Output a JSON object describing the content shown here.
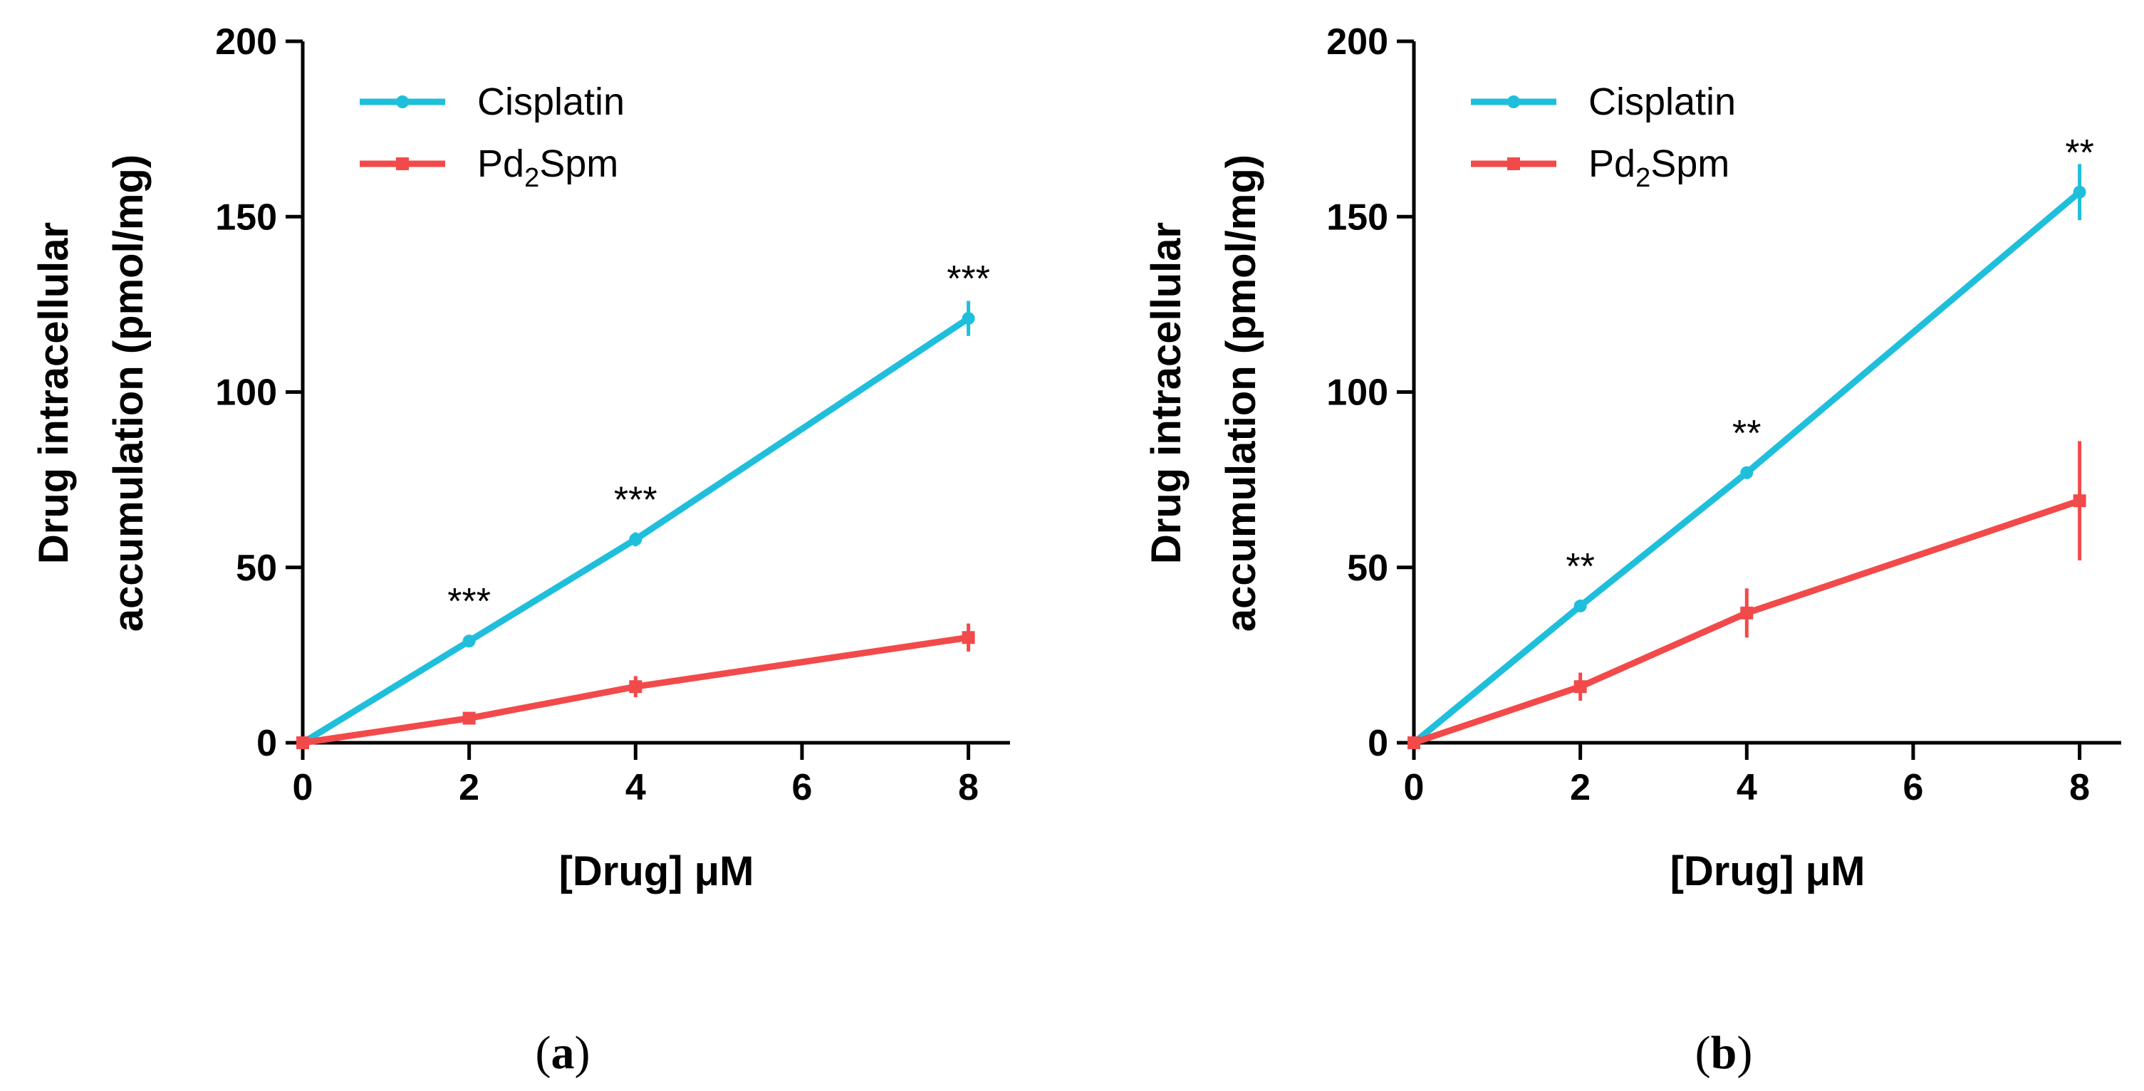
{
  "chart_data": [
    {
      "type": "line",
      "panel_label": "a",
      "xlabel": "[Drug] μM",
      "ylabel_line1": "Drug intracellular",
      "ylabel_line2": "accumulation (pmol/mg)",
      "x_ticks": [
        "0",
        "2",
        "4",
        "6",
        "8"
      ],
      "y_ticks": [
        "0",
        "50",
        "100",
        "150",
        "200"
      ],
      "xlim": [
        0,
        8.5
      ],
      "ylim": [
        0,
        200
      ],
      "legend": {
        "placement": "top-left"
      },
      "series": [
        {
          "name": "Cisplatin",
          "legend_text": "Cisplatin",
          "color": "#1fbfdc",
          "marker": "circle",
          "x": [
            0,
            2,
            4,
            8
          ],
          "y": [
            0,
            29,
            58,
            121
          ],
          "err": [
            0,
            1.5,
            2,
            5
          ]
        },
        {
          "name": "Pd2Spm",
          "legend_main": "Pd",
          "legend_sub": "2",
          "legend_rest": "Spm",
          "color": "#f24a4a",
          "marker": "square",
          "x": [
            0,
            2,
            4,
            8
          ],
          "y": [
            0,
            7,
            16,
            30
          ],
          "err": [
            0,
            1.5,
            3,
            4
          ]
        }
      ],
      "annotations": [
        {
          "x": 2,
          "y": 29,
          "text": "***"
        },
        {
          "x": 4,
          "y": 58,
          "text": "***"
        },
        {
          "x": 8,
          "y": 121,
          "text": "***"
        }
      ]
    },
    {
      "type": "line",
      "panel_label": "b",
      "xlabel": "[Drug] μM",
      "ylabel_line1": "Drug intracellular",
      "ylabel_line2": "accumulation (pmol/mg)",
      "x_ticks": [
        "0",
        "2",
        "4",
        "6",
        "8"
      ],
      "y_ticks": [
        "0",
        "50",
        "100",
        "150",
        "200"
      ],
      "xlim": [
        0,
        8.5
      ],
      "ylim": [
        0,
        200
      ],
      "legend": {
        "placement": "top-left"
      },
      "series": [
        {
          "name": "Cisplatin",
          "legend_text": "Cisplatin",
          "color": "#1fbfdc",
          "marker": "circle",
          "x": [
            0,
            2,
            4,
            8
          ],
          "y": [
            0,
            39,
            77,
            157
          ],
          "err": [
            0,
            1.5,
            1.5,
            8
          ]
        },
        {
          "name": "Pd2Spm",
          "legend_main": "Pd",
          "legend_sub": "2",
          "legend_rest": "Spm",
          "color": "#f24a4a",
          "marker": "square",
          "x": [
            0,
            2,
            4,
            8
          ],
          "y": [
            0,
            16,
            37,
            69
          ],
          "err": [
            0,
            4,
            7,
            17
          ]
        }
      ],
      "annotations": [
        {
          "x": 2,
          "y": 39,
          "text": "**"
        },
        {
          "x": 4,
          "y": 77,
          "text": "**"
        },
        {
          "x": 8,
          "y": 157,
          "text": "**"
        }
      ]
    }
  ],
  "captions": [
    {
      "open": "(",
      "letter": "a",
      "close": ")"
    },
    {
      "open": "(",
      "letter": "b",
      "close": ")"
    }
  ]
}
